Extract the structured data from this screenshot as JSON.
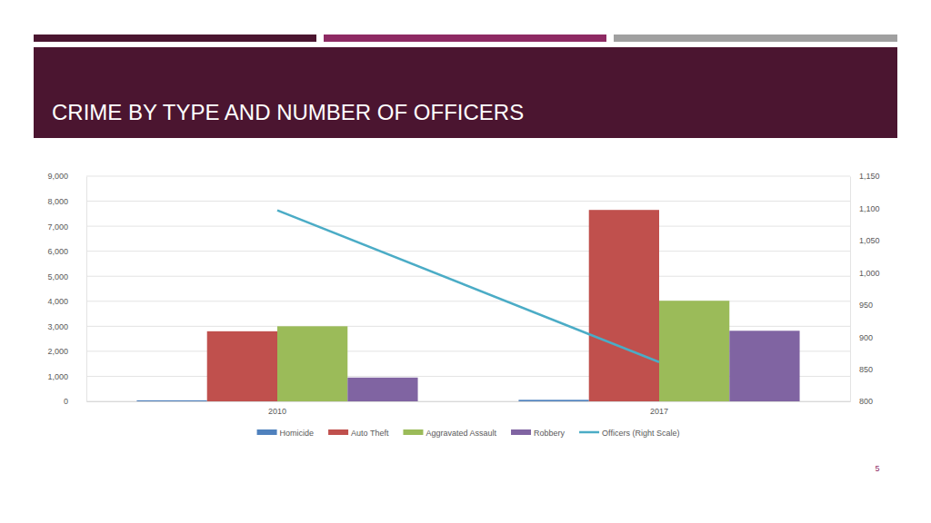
{
  "chart_data": {
    "type": "bar",
    "title": "CRIME BY TYPE AND NUMBER OF OFFICERS",
    "categories": [
      "2010",
      "2017"
    ],
    "series": [
      {
        "name": "Homicide",
        "color": "#4f81bd",
        "values": [
          40,
          60
        ]
      },
      {
        "name": "Auto Theft",
        "color": "#c0504d",
        "values": [
          2800,
          7650
        ]
      },
      {
        "name": "Aggravated Assault",
        "color": "#9bbb59",
        "values": [
          3000,
          4020
        ]
      },
      {
        "name": "Robbery",
        "color": "#8064a2",
        "values": [
          950,
          2820
        ]
      },
      {
        "name": "Officers (Right Scale)",
        "color": "#4bacc6",
        "type": "line",
        "axis": "y2",
        "values": [
          1097,
          861
        ]
      }
    ],
    "ylim": [
      0,
      9000
    ],
    "yticks": [
      0,
      {
        "value": 1000,
        "label": "1,000"
      },
      {
        "value": 2000,
        "label": "2,000"
      },
      {
        "value": 3000,
        "label": "3,000"
      },
      {
        "value": 4000,
        "label": "4,000"
      },
      {
        "value": 5000,
        "label": "5,000"
      },
      {
        "value": 6000,
        "label": "6,000"
      },
      {
        "value": 7000,
        "label": "7,000"
      },
      {
        "value": 8000,
        "label": "8,000"
      },
      {
        "value": 9000,
        "label": "9,000"
      }
    ],
    "y2lim": [
      800,
      1150
    ],
    "y2ticks": [
      800,
      850,
      900,
      950,
      {
        "value": 1000,
        "label": "1,000"
      },
      {
        "value": 1050,
        "label": "1,050"
      },
      {
        "value": 1100,
        "label": "1,100"
      },
      {
        "value": 1150,
        "label": "1,150"
      }
    ],
    "grid": true,
    "legend": "bottom"
  },
  "page_number": "5"
}
